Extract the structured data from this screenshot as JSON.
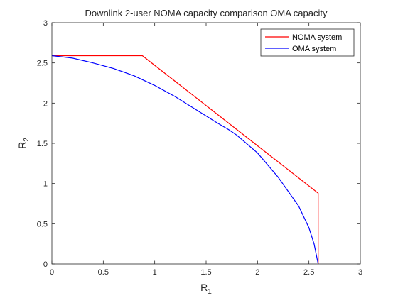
{
  "chart_data": {
    "type": "line",
    "title": "Downlink 2-user NOMA capacity comparison OMA capacity",
    "xlabel": {
      "base": "R",
      "sub": "1"
    },
    "ylabel": {
      "base": "R",
      "sub": "2"
    },
    "xlim": [
      0,
      3
    ],
    "ylim": [
      0,
      3
    ],
    "xticks": [
      0,
      0.5,
      1,
      1.5,
      2,
      2.5,
      3
    ],
    "yticks": [
      0,
      0.5,
      1,
      1.5,
      2,
      2.5,
      3
    ],
    "xtick_labels": [
      "0",
      "0.5",
      "1",
      "1.5",
      "2",
      "2.5",
      "3"
    ],
    "ytick_labels": [
      "0",
      "0.5",
      "1",
      "1.5",
      "2",
      "2.5",
      "3"
    ],
    "grid": false,
    "legend_position": "top-right",
    "series": [
      {
        "name": "NOMA system",
        "color": "#ff0000",
        "x": [
          0,
          0.88,
          2.59,
          2.59
        ],
        "y": [
          2.59,
          2.59,
          0.88,
          0
        ]
      },
      {
        "name": "OMA system",
        "color": "#0000ff",
        "x": [
          0,
          0.2,
          0.4,
          0.6,
          0.8,
          1.0,
          1.2,
          1.4,
          1.6,
          1.72,
          1.8,
          2.0,
          2.2,
          2.4,
          2.5,
          2.55,
          2.59
        ],
        "y": [
          2.59,
          2.56,
          2.5,
          2.43,
          2.34,
          2.22,
          2.08,
          1.92,
          1.76,
          1.67,
          1.6,
          1.38,
          1.08,
          0.72,
          0.45,
          0.25,
          0
        ]
      }
    ]
  }
}
